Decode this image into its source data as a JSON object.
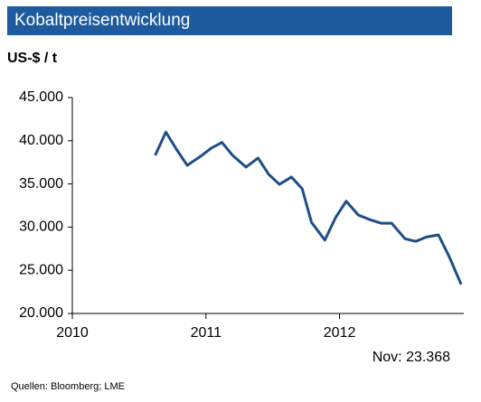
{
  "chart_data": {
    "type": "line",
    "title": "Kobaltpreisentwicklung",
    "y_label": "US-$ / t",
    "annotation": "Nov: 23.368",
    "source": "Quellen: Bloomberg; LME",
    "x": [
      2010.62,
      2010.7,
      2010.78,
      2010.86,
      2010.96,
      2011.04,
      2011.12,
      2011.2,
      2011.3,
      2011.39,
      2011.47,
      2011.55,
      2011.64,
      2011.72,
      2011.79,
      2011.89,
      2011.97,
      2012.05,
      2012.14,
      2012.22,
      2012.31,
      2012.39,
      2012.49,
      2012.57,
      2012.65,
      2012.74,
      2012.82,
      2012.91
    ],
    "series": [
      {
        "color": "#1f4e87",
        "values": [
          38300,
          41000,
          39000,
          37150,
          38200,
          39150,
          39800,
          38300,
          36950,
          38000,
          36100,
          34950,
          35800,
          34450,
          30550,
          28500,
          31100,
          33000,
          31400,
          30900,
          30450,
          30450,
          28650,
          28350,
          28850,
          29100,
          26600,
          23368
        ]
      }
    ],
    "xlim": [
      2010,
      2012.93
    ],
    "xticks": [
      2010,
      2011,
      2012
    ],
    "ylim": [
      20000,
      45000
    ],
    "yticks": [
      {
        "value": 20000,
        "label": "20.000"
      },
      {
        "value": 25000,
        "label": "25.000"
      },
      {
        "value": 30000,
        "label": "30.000"
      },
      {
        "value": 35000,
        "label": "35.000"
      },
      {
        "value": 40000,
        "label": "40.000"
      },
      {
        "value": 45000,
        "label": "45.000"
      }
    ],
    "title_background": "#1e5b9e"
  }
}
